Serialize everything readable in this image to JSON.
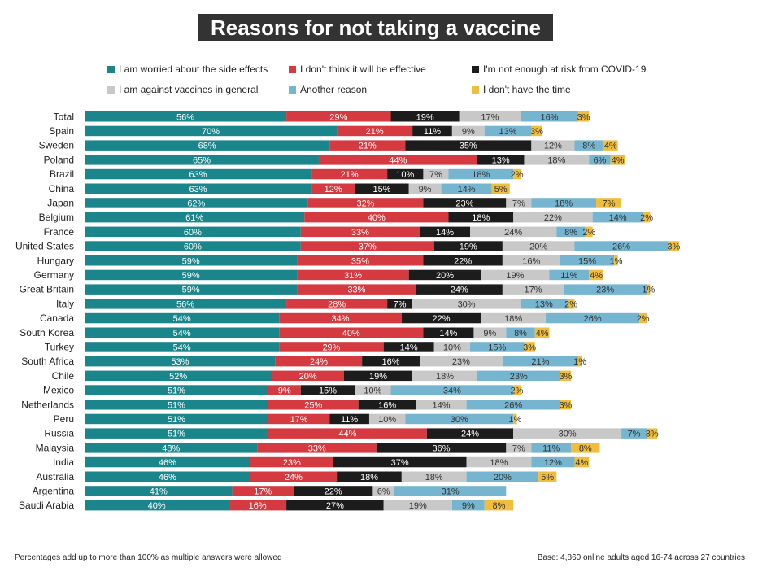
{
  "chart_data": {
    "type": "bar",
    "stacked": true,
    "orientation": "horizontal",
    "title": "Reasons for not taking a vaccine",
    "legend_position": "top",
    "grid": false,
    "categories": [
      "Total",
      "Spain",
      "Sweden",
      "Poland",
      "Brazil",
      "China",
      "Japan",
      "Belgium",
      "France",
      "United States",
      "Hungary",
      "Germany",
      "Great Britain",
      "Italy",
      "Canada",
      "South Korea",
      "Turkey",
      "South Africa",
      "Chile",
      "Mexico",
      "Netherlands",
      "Peru",
      "Russia",
      "Malaysia",
      "India",
      "Australia",
      "Argentina",
      "Saudi Arabia"
    ],
    "series": [
      {
        "name": "I am worried about the side effects",
        "color": "#1a858a",
        "values": [
          56,
          70,
          68,
          65,
          63,
          63,
          62,
          61,
          60,
          60,
          59,
          59,
          59,
          56,
          54,
          54,
          54,
          53,
          52,
          51,
          51,
          51,
          51,
          48,
          46,
          46,
          41,
          40
        ]
      },
      {
        "name": "I don't think it will be effective",
        "color": "#d43a3f",
        "values": [
          29,
          21,
          21,
          44,
          21,
          12,
          32,
          40,
          33,
          37,
          35,
          31,
          33,
          28,
          34,
          40,
          29,
          24,
          20,
          9,
          25,
          17,
          44,
          33,
          23,
          24,
          17,
          16
        ]
      },
      {
        "name": "I'm not enough at risk from COVID-19",
        "color": "#1c1c1c",
        "values": [
          19,
          11,
          35,
          13,
          10,
          15,
          23,
          18,
          14,
          19,
          22,
          20,
          24,
          7,
          22,
          14,
          14,
          16,
          19,
          15,
          16,
          11,
          24,
          36,
          37,
          18,
          22,
          27
        ]
      },
      {
        "name": "I am against vaccines in general",
        "color": "#c8c8c8",
        "values": [
          17,
          9,
          12,
          18,
          7,
          9,
          7,
          22,
          24,
          20,
          16,
          19,
          17,
          30,
          18,
          9,
          10,
          23,
          18,
          10,
          14,
          10,
          30,
          7,
          18,
          18,
          6,
          19
        ]
      },
      {
        "name": "Another reason",
        "color": "#76b5cf",
        "values": [
          16,
          13,
          8,
          6,
          18,
          14,
          18,
          14,
          8,
          26,
          15,
          11,
          23,
          13,
          26,
          8,
          15,
          21,
          23,
          34,
          26,
          30,
          7,
          11,
          12,
          20,
          31,
          9
        ]
      },
      {
        "name": "I don't have the time",
        "color": "#f1bd3c",
        "values": [
          3,
          3,
          4,
          4,
          2,
          5,
          7,
          2,
          2,
          3,
          1,
          4,
          1,
          2,
          2,
          4,
          3,
          1,
          3,
          2,
          3,
          1,
          3,
          8,
          4,
          5,
          0,
          8
        ]
      }
    ],
    "value_suffix": "%"
  },
  "footnotes": {
    "left": "Percentages add up to more than 100% as multiple answers were allowed",
    "right": "Base: 4,860 online adults aged 16-74 across 27 countries"
  }
}
